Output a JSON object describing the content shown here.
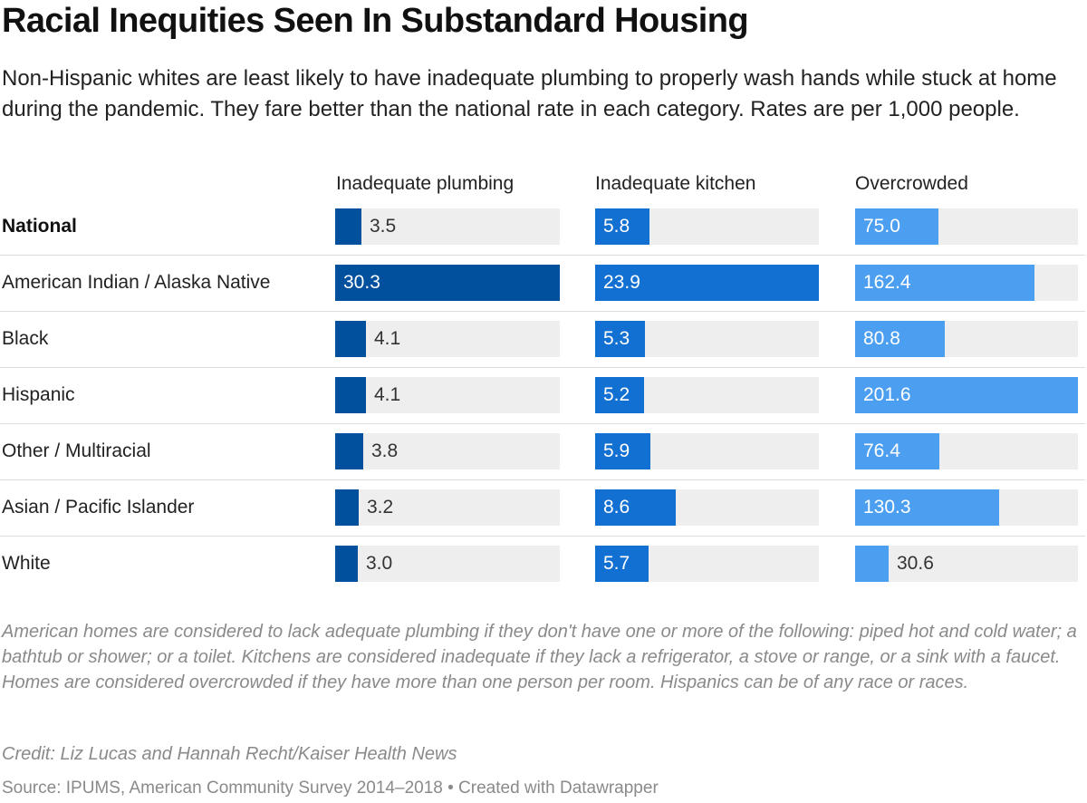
{
  "chart_data": {
    "type": "table",
    "title": "Racial Inequities Seen In Substandard Housing",
    "subtitle": "Non-Hispanic whites are least likely to have inadequate plumbing to properly wash hands while stuck at home during the pandemic. They fare better than the national rate in each category. Rates are per 1,000 people.",
    "columns": [
      {
        "key": "plumbing",
        "label": "Inadequate plumbing",
        "color": "#00509e",
        "max": 30.3
      },
      {
        "key": "kitchen",
        "label": "Inadequate kitchen",
        "color": "#1170d1",
        "max": 23.9
      },
      {
        "key": "overcrowded",
        "label": "Overcrowded",
        "color": "#4c9ff0",
        "max": 201.6
      }
    ],
    "rows": [
      {
        "label": "National",
        "bold": true,
        "plumbing": "3.5",
        "kitchen": "5.8",
        "overcrowded": "75.0"
      },
      {
        "label": "American Indian / Alaska Native",
        "bold": false,
        "plumbing": "30.3",
        "kitchen": "23.9",
        "overcrowded": "162.4"
      },
      {
        "label": "Black",
        "bold": false,
        "plumbing": "4.1",
        "kitchen": "5.3",
        "overcrowded": "80.8"
      },
      {
        "label": "Hispanic",
        "bold": false,
        "plumbing": "4.1",
        "kitchen": "5.2",
        "overcrowded": "201.6"
      },
      {
        "label": "Other / Multiracial",
        "bold": false,
        "plumbing": "3.8",
        "kitchen": "5.9",
        "overcrowded": "76.4"
      },
      {
        "label": "Asian / Pacific Islander",
        "bold": false,
        "plumbing": "3.2",
        "kitchen": "8.6",
        "overcrowded": "130.3"
      },
      {
        "label": "White",
        "bold": false,
        "plumbing": "3.0",
        "kitchen": "5.7",
        "overcrowded": "30.6"
      }
    ],
    "notes": "American homes are considered to lack adequate plumbing if they don't have one or more of the following: piped hot and cold water; a bathtub or shower; or a toilet. Kitchens are considered inadequate if they lack a refrigerator, a stove or range, or a sink with a faucet. Homes are considered overcrowded if they have more than one person per room. Hispanics can be of any race or races.",
    "credit": "Credit: Liz Lucas and Hannah Recht/Kaiser Health News",
    "source": "Source: IPUMS, American Community Survey 2014–2018 • Created with Datawrapper"
  }
}
